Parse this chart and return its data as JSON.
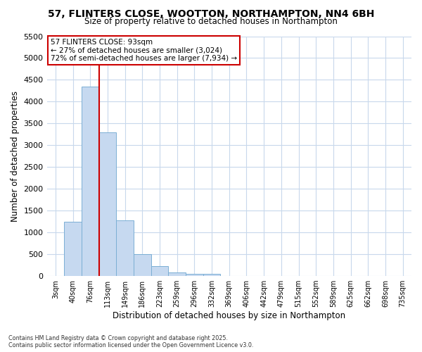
{
  "title1": "57, FLINTERS CLOSE, WOOTTON, NORTHAMPTON, NN4 6BH",
  "title2": "Size of property relative to detached houses in Northampton",
  "xlabel": "Distribution of detached houses by size in Northampton",
  "ylabel": "Number of detached properties",
  "bar_labels": [
    "3sqm",
    "40sqm",
    "76sqm",
    "113sqm",
    "149sqm",
    "186sqm",
    "223sqm",
    "259sqm",
    "296sqm",
    "332sqm",
    "369sqm",
    "406sqm",
    "442sqm",
    "479sqm",
    "515sqm",
    "552sqm",
    "589sqm",
    "625sqm",
    "662sqm",
    "698sqm",
    "735sqm"
  ],
  "bar_values": [
    0,
    1250,
    4350,
    3300,
    1270,
    500,
    230,
    80,
    50,
    50,
    0,
    0,
    0,
    0,
    0,
    0,
    0,
    0,
    0,
    0,
    0
  ],
  "bar_color": "#c6d9f0",
  "bar_edgecolor": "#7bafd4",
  "ylim": [
    0,
    5500
  ],
  "yticks": [
    0,
    500,
    1000,
    1500,
    2000,
    2500,
    3000,
    3500,
    4000,
    4500,
    5000,
    5500
  ],
  "vline_x": 2.5,
  "vline_color": "#cc0000",
  "annotation_title": "57 FLINTERS CLOSE: 93sqm",
  "annotation_line1": "← 27% of detached houses are smaller (3,024)",
  "annotation_line2": "72% of semi-detached houses are larger (7,934) →",
  "annotation_box_color": "#cc0000",
  "background_color": "#ffffff",
  "grid_color": "#c8d8ec",
  "footer1": "Contains HM Land Registry data © Crown copyright and database right 2025.",
  "footer2": "Contains public sector information licensed under the Open Government Licence v3.0."
}
